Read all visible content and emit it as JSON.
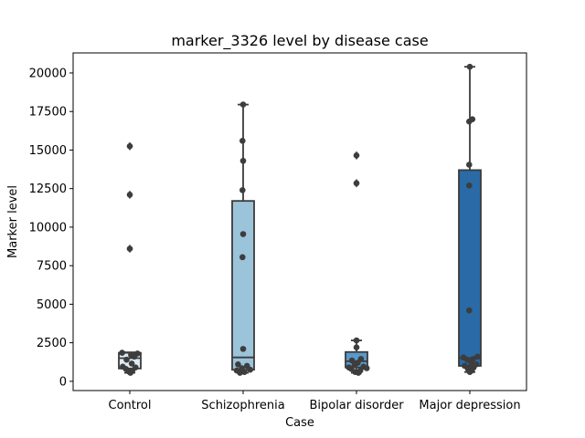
{
  "chart_data": {
    "type": "box",
    "title": "marker_3326 level by disease case",
    "xlabel": "Case",
    "ylabel": "Marker level",
    "ylim": [
      -600,
      21300
    ],
    "y_ticks": [
      0,
      2500,
      5000,
      7500,
      10000,
      12500,
      15000,
      17500,
      20000
    ],
    "categories": [
      "Control",
      "Schizophrenia",
      "Bipolar disorder",
      "Major depression"
    ],
    "colors": [
      "#dde9f4",
      "#9bc3da",
      "#5a99c8",
      "#2a6aa6"
    ],
    "edge_color": "#3a3a3a",
    "boxes": [
      {
        "q1": 830,
        "median": 1500,
        "q3": 1850,
        "whisker_low": 550,
        "whisker_high": 1880,
        "outliers": [
          8600,
          12100,
          15250
        ]
      },
      {
        "q1": 750,
        "median": 1550,
        "q3": 11700,
        "whisker_low": 550,
        "whisker_high": 17950,
        "outliers": []
      },
      {
        "q1": 900,
        "median": 1300,
        "q3": 1900,
        "whisker_low": 550,
        "whisker_high": 2650,
        "outliers": [
          12850,
          14650
        ]
      },
      {
        "q1": 1000,
        "median": 1500,
        "q3": 13700,
        "whisker_low": 600,
        "whisker_high": 20400,
        "outliers": []
      }
    ],
    "points": [
      [
        {
          "y": 1850,
          "j": -0.6
        },
        {
          "y": 1800,
          "j": 0.6
        },
        {
          "y": 1700,
          "j": 0.1
        },
        {
          "y": 1600,
          "j": 0.35
        },
        {
          "y": 1400,
          "j": -0.25
        },
        {
          "y": 1150,
          "j": 0.15
        },
        {
          "y": 950,
          "j": -0.55
        },
        {
          "y": 900,
          "j": 0.45
        },
        {
          "y": 800,
          "j": -0.3
        },
        {
          "y": 700,
          "j": 0.2
        },
        {
          "y": 650,
          "j": -0.1
        },
        {
          "y": 550,
          "j": 0.05
        },
        {
          "y": 8600,
          "j": 0
        },
        {
          "y": 12100,
          "j": 0
        },
        {
          "y": 15250,
          "j": 0
        }
      ],
      [
        {
          "y": 17950,
          "j": 0
        },
        {
          "y": 15600,
          "j": -0.05
        },
        {
          "y": 14300,
          "j": 0
        },
        {
          "y": 12400,
          "j": -0.05
        },
        {
          "y": 9550,
          "j": 0
        },
        {
          "y": 8050,
          "j": -0.05
        },
        {
          "y": 2100,
          "j": 0
        },
        {
          "y": 1100,
          "j": -0.4
        },
        {
          "y": 1000,
          "j": 0.3
        },
        {
          "y": 850,
          "j": -0.1
        },
        {
          "y": 750,
          "j": 0.55
        },
        {
          "y": 700,
          "j": -0.5
        },
        {
          "y": 600,
          "j": 0.1
        },
        {
          "y": 550,
          "j": -0.25
        }
      ],
      [
        {
          "y": 2650,
          "j": 0
        },
        {
          "y": 2200,
          "j": 0
        },
        {
          "y": 1450,
          "j": 0.35
        },
        {
          "y": 1350,
          "j": -0.35
        },
        {
          "y": 1200,
          "j": 0.1
        },
        {
          "y": 1050,
          "j": -0.15
        },
        {
          "y": 950,
          "j": 0.55
        },
        {
          "y": 900,
          "j": -0.6
        },
        {
          "y": 850,
          "j": 0.8
        },
        {
          "y": 800,
          "j": -0.4
        },
        {
          "y": 700,
          "j": 0.3
        },
        {
          "y": 600,
          "j": -0.1
        },
        {
          "y": 550,
          "j": 0.15
        },
        {
          "y": 12850,
          "j": 0
        },
        {
          "y": 14650,
          "j": 0
        }
      ],
      [
        {
          "y": 20400,
          "j": 0
        },
        {
          "y": 17000,
          "j": 0.2
        },
        {
          "y": 16850,
          "j": -0.05
        },
        {
          "y": 14050,
          "j": -0.05
        },
        {
          "y": 12700,
          "j": -0.05
        },
        {
          "y": 4600,
          "j": -0.05
        },
        {
          "y": 1600,
          "j": 0.6
        },
        {
          "y": 1550,
          "j": -0.5
        },
        {
          "y": 1450,
          "j": 0.25
        },
        {
          "y": 1400,
          "j": -0.2
        },
        {
          "y": 1200,
          "j": 0.1
        },
        {
          "y": 1100,
          "j": 0.5
        },
        {
          "y": 1000,
          "j": -0.4
        },
        {
          "y": 900,
          "j": 0.3
        },
        {
          "y": 800,
          "j": -0.15
        },
        {
          "y": 700,
          "j": 0.15
        },
        {
          "y": 600,
          "j": 0
        }
      ]
    ]
  }
}
